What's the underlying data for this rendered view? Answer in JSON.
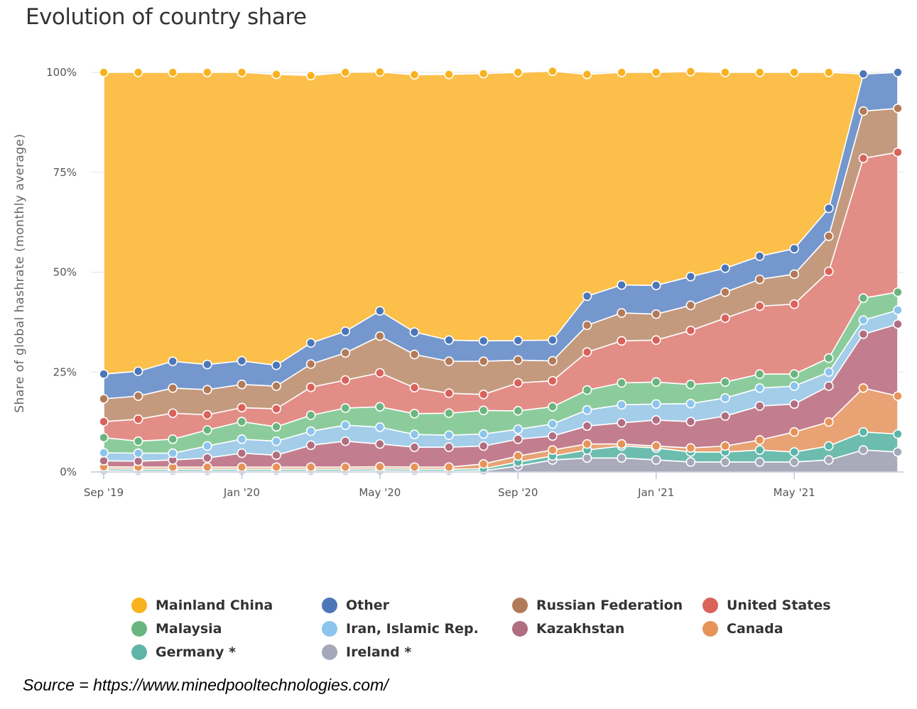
{
  "chart_data": {
    "type": "area",
    "stacked": true,
    "title": "Evolution of country share",
    "ylabel": "Share of global hashrate (monthly average)",
    "xlabel": "",
    "ylim": [
      0,
      100
    ],
    "yticks": [
      0,
      25,
      50,
      75,
      100
    ],
    "ytick_labels": [
      "0%",
      "25%",
      "50%",
      "75%",
      "100%"
    ],
    "xtick_labels": [
      {
        "label": "Sep '19",
        "index": 0
      },
      {
        "label": "Jan '20",
        "index": 4
      },
      {
        "label": "May '20",
        "index": 8
      },
      {
        "label": "Sep '20",
        "index": 12
      },
      {
        "label": "Jan '21",
        "index": 16
      },
      {
        "label": "May '21",
        "index": 20
      }
    ],
    "categories": [
      "Sep '19",
      "Oct '19",
      "Nov '19",
      "Dec '19",
      "Jan '20",
      "Feb '20",
      "Mar '20",
      "Apr '20",
      "May '20",
      "Jun '20",
      "Jul '20",
      "Aug '20",
      "Sep '20",
      "Oct '20",
      "Nov '20",
      "Dec '20",
      "Jan '21",
      "Feb '21",
      "Mar '21",
      "Apr '21",
      "May '21",
      "Jun '21",
      "Jul '21",
      "Aug '21"
    ],
    "series": [
      {
        "name": "Ireland *",
        "color": "#a9abbb",
        "values": [
          0.3,
          0.2,
          0.2,
          0.2,
          0.2,
          0.2,
          0.2,
          0.2,
          0.3,
          0.2,
          0.2,
          0.3,
          1.5,
          3.0,
          3.5,
          3.5,
          3.0,
          2.5,
          2.5,
          2.5,
          2.5,
          3.0,
          5.5,
          5.0
        ]
      },
      {
        "name": "Germany *",
        "color": "#6cbdae",
        "values": [
          0.5,
          0.5,
          0.5,
          0.5,
          0.5,
          0.5,
          0.5,
          0.5,
          0.5,
          0.5,
          0.5,
          0.5,
          1.0,
          1.0,
          2.0,
          3.0,
          3.0,
          2.5,
          2.5,
          3.0,
          2.5,
          3.5,
          4.5,
          4.5
        ]
      },
      {
        "name": "Canada",
        "color": "#e8a273",
        "values": [
          0.5,
          0.5,
          0.5,
          0.5,
          0.5,
          0.5,
          0.5,
          0.5,
          0.5,
          0.5,
          0.5,
          1.2,
          1.5,
          1.5,
          1.5,
          0.5,
          0.5,
          1.0,
          1.5,
          2.5,
          5.0,
          6.0,
          11.0,
          9.5
        ]
      },
      {
        "name": "Kazakhstan",
        "color": "#c27e8f",
        "values": [
          1.5,
          1.5,
          1.8,
          2.3,
          3.5,
          3.0,
          5.5,
          6.5,
          5.7,
          5.0,
          5.0,
          4.5,
          4.2,
          3.5,
          4.5,
          5.3,
          6.5,
          6.6,
          7.5,
          8.5,
          7.0,
          9.0,
          13.5,
          18.0
        ]
      },
      {
        "name": "Iran, Islamic Rep.",
        "color": "#a3cde9",
        "values": [
          2.0,
          2.0,
          1.7,
          3.0,
          3.5,
          3.5,
          3.5,
          4.0,
          4.2,
          3.2,
          3.0,
          3.0,
          2.5,
          3.0,
          4.0,
          4.5,
          4.0,
          4.5,
          4.5,
          4.5,
          4.5,
          3.5,
          3.5,
          3.5
        ]
      },
      {
        "name": "Malaysia",
        "color": "#8ccc9c",
        "values": [
          3.8,
          3.0,
          3.5,
          4.0,
          4.4,
          3.6,
          4.0,
          4.3,
          5.1,
          5.2,
          5.5,
          5.9,
          4.6,
          4.3,
          5.0,
          5.5,
          5.5,
          4.8,
          4.0,
          3.5,
          3.0,
          3.5,
          5.5,
          4.5
        ]
      },
      {
        "name": "United States",
        "color": "#e38d87",
        "values": [
          4.0,
          5.5,
          6.5,
          3.8,
          3.5,
          4.5,
          7.0,
          7.0,
          8.5,
          6.5,
          5.0,
          4.0,
          7.0,
          6.5,
          9.5,
          10.5,
          10.5,
          13.5,
          16.0,
          17.0,
          17.5,
          21.7,
          35.0,
          35.0
        ]
      },
      {
        "name": "Russian Federation",
        "color": "#c49a7e",
        "values": [
          5.7,
          5.8,
          6.3,
          6.3,
          5.8,
          5.7,
          5.8,
          6.8,
          9.2,
          8.3,
          8.0,
          8.3,
          5.7,
          5.0,
          6.7,
          7.0,
          6.5,
          6.3,
          6.5,
          6.7,
          7.5,
          8.8,
          11.8,
          11.0
        ]
      },
      {
        "name": "Other",
        "color": "#7497cd",
        "values": [
          6.2,
          6.2,
          6.7,
          6.3,
          5.9,
          5.2,
          5.3,
          5.4,
          6.3,
          5.6,
          5.3,
          5.1,
          4.9,
          5.2,
          7.3,
          7.0,
          7.2,
          7.2,
          6.0,
          5.8,
          6.4,
          7.0,
          9.3,
          9.0
        ]
      },
      {
        "name": "Mainland China",
        "color": "#fbbf4a",
        "values": [
          75.5,
          74.8,
          72.3,
          73.1,
          72.2,
          72.8,
          66.9,
          64.8,
          59.8,
          64.4,
          66.5,
          66.9,
          67.1,
          67.3,
          55.5,
          53.2,
          53.3,
          51.3,
          49.0,
          46.0,
          44.1,
          34.0,
          0.0,
          0.0
        ]
      }
    ],
    "legend": [
      [
        "Mainland China",
        "Other",
        "Russian Federation",
        "United States"
      ],
      [
        "Malaysia",
        "Iran, Islamic Rep.",
        "Kazakhstan",
        "Canada"
      ],
      [
        "Germany *",
        "Ireland *"
      ]
    ],
    "legend_colors": {
      "Mainland China": "#f9b21e",
      "Other": "#4c76b8",
      "Russian Federation": "#b37a58",
      "United States": "#d9625b",
      "Malaysia": "#6ab57f",
      "Iran, Islamic Rep.": "#8cc4ec",
      "Kazakhstan": "#b06e80",
      "Canada": "#e6935a",
      "Germany *": "#5db5a8",
      "Ireland *": "#a5a8b8"
    },
    "marker_colors": {
      "Mainland China": "#f9b21e",
      "Other": "#4c76b8",
      "Russian Federation": "#b37a58",
      "United States": "#d9625b",
      "Malaysia": "#6ab57f",
      "Iran, Islamic Rep.": "#8cc4ec",
      "Kazakhstan": "#b06e80",
      "Canada": "#e6935a",
      "Germany *": "#5db5a8",
      "Ireland *": "#a5a8b8"
    },
    "legend_position": "bottom"
  },
  "source": "Source = https://www.minedpooltechnologies.com/"
}
